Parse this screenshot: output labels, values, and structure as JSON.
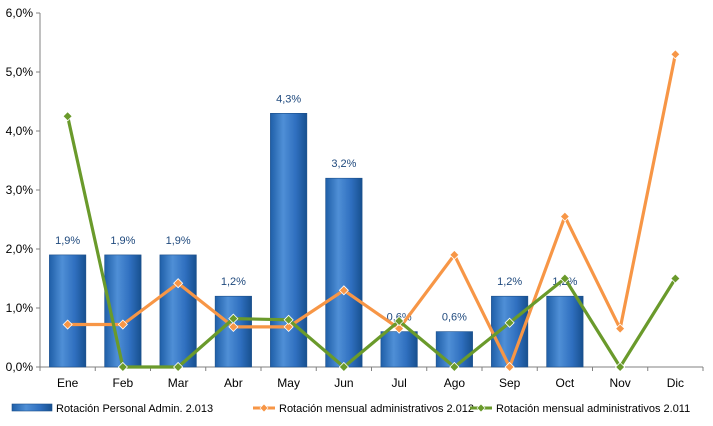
{
  "chart_data": {
    "type": "bar",
    "categories": [
      "Ene",
      "Feb",
      "Mar",
      "Abr",
      "May",
      "Jun",
      "Jul",
      "Ago",
      "Sep",
      "Oct",
      "Nov",
      "Dic"
    ],
    "ylim": [
      0,
      6
    ],
    "yticks": [
      "0,0%",
      "1,0%",
      "2,0%",
      "3,0%",
      "4,0%",
      "5,0%",
      "6,0%"
    ],
    "grid": false,
    "legend_position": "bottom",
    "series": [
      {
        "name": "Rotación Personal Admin. 2.013",
        "kind": "bar",
        "color": "#2e75b6",
        "values": [
          1.9,
          1.9,
          1.9,
          1.2,
          4.3,
          3.2,
          0.6,
          0.6,
          1.2,
          1.2,
          null,
          null
        ],
        "labels": [
          "1,9%",
          "1,9%",
          "1,9%",
          "1,2%",
          "4,3%",
          "3,2%",
          "0,6%",
          "0,6%",
          "1,2%",
          "1,2%",
          "",
          ""
        ]
      },
      {
        "name": "Rotación mensual administrativos 2.012",
        "kind": "line",
        "color": "#f79646",
        "values": [
          0.72,
          0.72,
          1.42,
          0.68,
          0.68,
          1.3,
          0.65,
          1.9,
          0.0,
          2.55,
          0.65,
          5.3
        ]
      },
      {
        "name": "Rotación mensual administrativos 2.011",
        "kind": "line",
        "color": "#6a9a2b",
        "values": [
          4.25,
          0.0,
          0.0,
          0.82,
          0.8,
          0.0,
          0.78,
          0.0,
          0.75,
          1.5,
          0.0,
          1.5
        ]
      }
    ]
  }
}
